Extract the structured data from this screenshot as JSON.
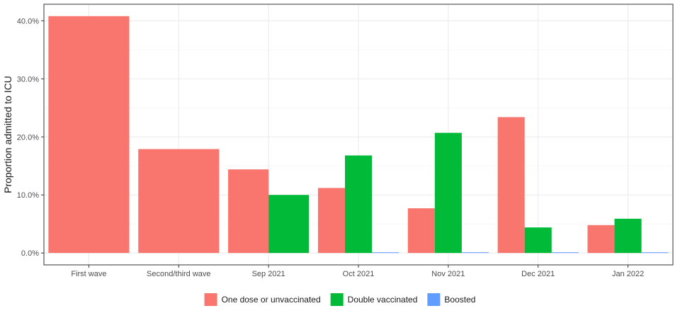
{
  "chart_data": {
    "type": "bar",
    "title": "",
    "xlabel": "",
    "ylabel": "Proportion admitted to ICU",
    "categories": [
      "First wave",
      "Second/third wave",
      "Sep 2021",
      "Oct 2021",
      "Nov 2021",
      "Dec 2021",
      "Jan 2022"
    ],
    "ylim": [
      0,
      42
    ],
    "yticks": [
      0,
      10,
      20,
      30,
      40
    ],
    "ytick_labels": [
      "0.0%",
      "10.0%",
      "20.0%",
      "30.0%",
      "40.0%"
    ],
    "grid": true,
    "legend_position": "bottom",
    "series": [
      {
        "name": "One dose or unvaccinated",
        "color": "#F8766D",
        "values": [
          40.8,
          17.9,
          14.4,
          11.2,
          7.7,
          23.4,
          4.8
        ]
      },
      {
        "name": "Double vaccinated",
        "color": "#00BA38",
        "values": [
          null,
          null,
          10.0,
          16.8,
          20.7,
          4.4,
          5.9
        ]
      },
      {
        "name": "Boosted",
        "color": "#619CFF",
        "values": [
          null,
          null,
          null,
          0.1,
          0.1,
          0.1,
          0.1
        ]
      }
    ]
  }
}
